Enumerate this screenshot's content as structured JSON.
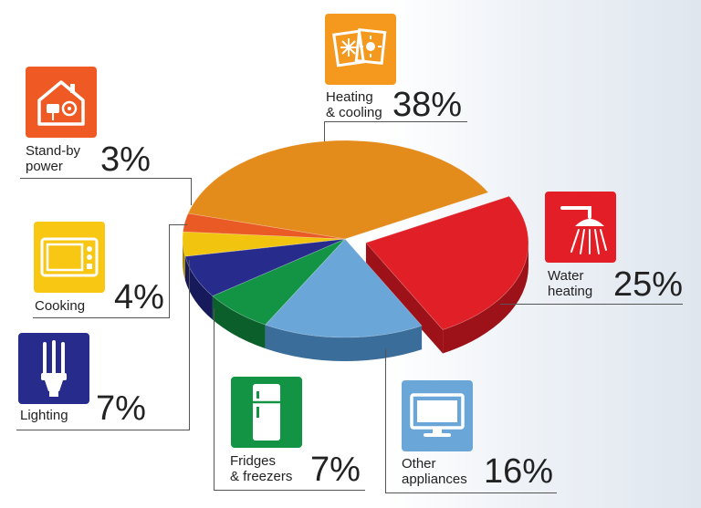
{
  "chart_data": {
    "type": "pie",
    "title": "",
    "slices": [
      {
        "name": "Heating & cooling",
        "label_lines": [
          "Heating",
          "& cooling"
        ],
        "value": 38,
        "value_label": "38%",
        "color": "#e38b1b",
        "side": "#a9640f",
        "icon": "heating-cooling-icon",
        "icon_color": "#f4981e"
      },
      {
        "name": "Water heating",
        "label_lines": [
          "Water",
          "heating"
        ],
        "value": 25,
        "value_label": "25%",
        "color": "#e01f26",
        "side": "#9c1218",
        "icon": "shower-icon",
        "icon_color": "#e41e26",
        "exploded": true
      },
      {
        "name": "Other appliances",
        "label_lines": [
          "Other",
          "appliances"
        ],
        "value": 16,
        "value_label": "16%",
        "color": "#6aa6d8",
        "side": "#3b6d9a",
        "icon": "television-icon",
        "icon_color": "#6aa6d8"
      },
      {
        "name": "Fridges & freezers",
        "label_lines": [
          "Fridges",
          "& freezers"
        ],
        "value": 7,
        "value_label": "7%",
        "color": "#129444",
        "side": "#0b5f2b",
        "icon": "fridge-icon",
        "icon_color": "#129444"
      },
      {
        "name": "Lighting",
        "label_lines": [
          "Lighting"
        ],
        "value": 7,
        "value_label": "7%",
        "color": "#262b8c",
        "side": "#161a5a",
        "icon": "light-bulb-icon",
        "icon_color": "#262b8c"
      },
      {
        "name": "Cooking",
        "label_lines": [
          "Cooking"
        ],
        "value": 4,
        "value_label": "4%",
        "color": "#f1c40f",
        "side": "#a88808",
        "icon": "microwave-icon",
        "icon_color": "#f7c713"
      },
      {
        "name": "Stand-by power",
        "label_lines": [
          "Stand-by",
          "power"
        ],
        "value": 3,
        "value_label": "3%",
        "color": "#ea5a25",
        "side": "#9e3812",
        "icon": "standby-plug-icon",
        "icon_color": "#ef5a24"
      }
    ]
  }
}
